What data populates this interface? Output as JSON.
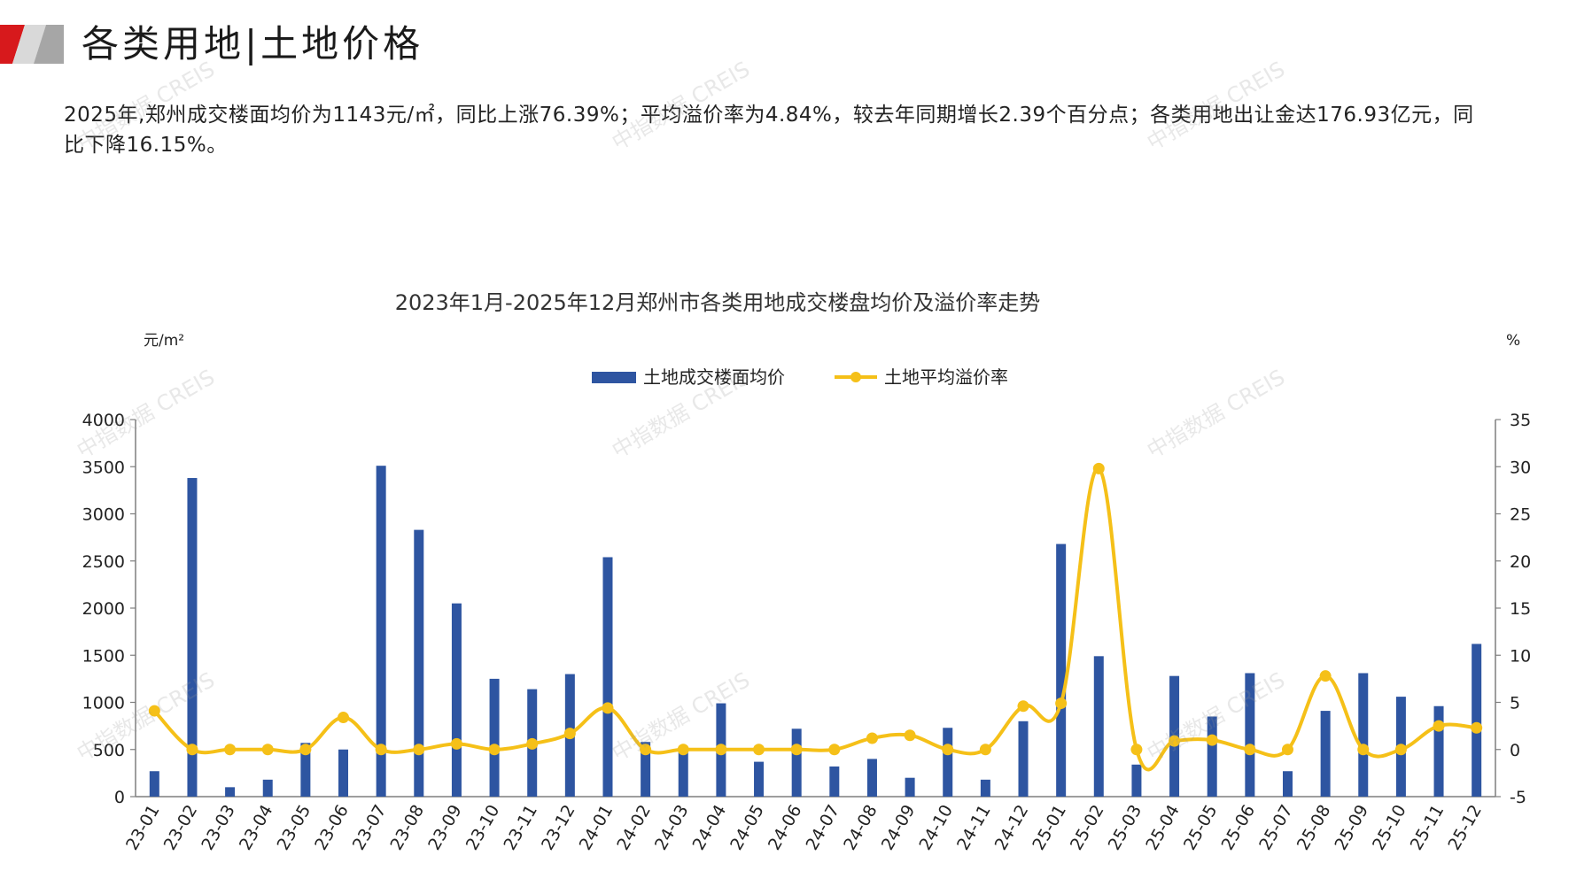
{
  "header": {
    "title": "各类用地|土地价格"
  },
  "intro": {
    "text": "2025年,郑州成交楼面均价为1143元/㎡，同比上涨76.39%；平均溢价率为4.84%，较去年同期增长2.39个百分点；各类用地出让金达176.93亿元，同比下降16.15%。"
  },
  "watermark": "中指数据 CREIS",
  "colors": {
    "bar": "#2E55A1",
    "line": "#F5C018",
    "axis": "#7f7f7f",
    "accent_red": "#D7191C"
  },
  "chart_data": {
    "type": "bar",
    "title": "2023年1月-2025年12月郑州市各类用地成交楼盘均价及溢价率走势",
    "y_left_unit": "元/m²",
    "y_right_unit": "%",
    "y_left_range": [
      0,
      4000
    ],
    "y_left_ticks": [
      0,
      500,
      1000,
      1500,
      2000,
      2500,
      3000,
      3500,
      4000
    ],
    "y_right_range": [
      -5,
      35
    ],
    "y_right_ticks": [
      -5,
      0,
      5,
      10,
      15,
      20,
      25,
      30,
      35
    ],
    "legend_position": "top-center",
    "grid": false,
    "categories": [
      "23-01",
      "23-02",
      "23-03",
      "23-04",
      "23-05",
      "23-06",
      "23-07",
      "23-08",
      "23-09",
      "23-10",
      "23-11",
      "23-12",
      "24-01",
      "24-02",
      "24-03",
      "24-04",
      "24-05",
      "24-06",
      "24-07",
      "24-08",
      "24-09",
      "24-10",
      "24-11",
      "24-12",
      "25-01",
      "25-02",
      "25-03",
      "25-04",
      "25-05",
      "25-06",
      "25-07",
      "25-08",
      "25-09",
      "25-10",
      "25-11",
      "25-12"
    ],
    "series": [
      {
        "name": "土地成交楼面均价",
        "type": "bar",
        "axis": "left",
        "values": [
          270,
          3380,
          100,
          180,
          570,
          500,
          3510,
          2830,
          2050,
          1250,
          1140,
          1300,
          2540,
          580,
          480,
          990,
          370,
          720,
          320,
          400,
          200,
          730,
          180,
          800,
          2680,
          1490,
          340,
          1280,
          850,
          1310,
          270,
          910,
          1310,
          1060,
          960,
          1620
        ]
      },
      {
        "name": "土地平均溢价率",
        "type": "line",
        "axis": "right",
        "values": [
          4.1,
          0.0,
          0.0,
          0.0,
          0.0,
          3.4,
          0.0,
          0.0,
          0.6,
          0.0,
          0.6,
          1.7,
          4.4,
          0.0,
          0.0,
          0.0,
          0.0,
          0.0,
          0.0,
          1.2,
          1.5,
          0.0,
          0.0,
          4.6,
          4.9,
          29.8,
          0.0,
          0.9,
          1.0,
          0.0,
          0.0,
          7.8,
          0.0,
          0.0,
          2.5,
          2.3
        ]
      }
    ]
  }
}
